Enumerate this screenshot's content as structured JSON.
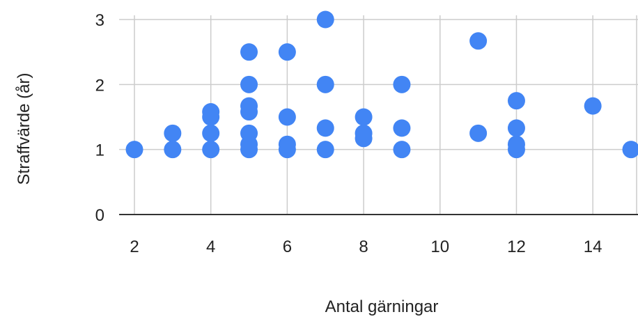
{
  "chart_data": {
    "type": "scatter",
    "title": "",
    "xlabel": "Antal gärningar",
    "ylabel": "Straffvärde (år)",
    "xlim": [
      1.6,
      15
    ],
    "ylim": [
      0,
      3
    ],
    "xticks": [
      2,
      4,
      6,
      8,
      10,
      12,
      14
    ],
    "yticks": [
      0,
      1,
      2,
      3
    ],
    "xtick_labels": [
      "2",
      "4",
      "6",
      "8",
      "10",
      "12",
      "14"
    ],
    "ytick_labels": [
      "0",
      "1",
      "2",
      "3"
    ],
    "grid": true,
    "legend": "none",
    "colors": {
      "points": "#4285f4",
      "grid": "#cccccc",
      "axis": "#333333",
      "text": "#222222"
    },
    "series": [
      {
        "points": [
          [
            2,
            1
          ],
          [
            3,
            1
          ],
          [
            3,
            1.25
          ],
          [
            4,
            1
          ],
          [
            4,
            1.25
          ],
          [
            4,
            1.5
          ],
          [
            4,
            1.58
          ],
          [
            5,
            1
          ],
          [
            5,
            1.08
          ],
          [
            5,
            1.25
          ],
          [
            5,
            1.58
          ],
          [
            5,
            1.67
          ],
          [
            5,
            2
          ],
          [
            5,
            2.5
          ],
          [
            6,
            1
          ],
          [
            6,
            1.08
          ],
          [
            6,
            1.5
          ],
          [
            6,
            2.5
          ],
          [
            7,
            1
          ],
          [
            7,
            1.33
          ],
          [
            7,
            2
          ],
          [
            7,
            3
          ],
          [
            8,
            1.17
          ],
          [
            8,
            1.25
          ],
          [
            8,
            1.5
          ],
          [
            9,
            1
          ],
          [
            9,
            1.33
          ],
          [
            9,
            2
          ],
          [
            11,
            1.25
          ],
          [
            11,
            2.67
          ],
          [
            12,
            1
          ],
          [
            12,
            1.08
          ],
          [
            12,
            1.33
          ],
          [
            12,
            1.75
          ],
          [
            14,
            1.67
          ],
          [
            15,
            1
          ]
        ]
      }
    ]
  }
}
